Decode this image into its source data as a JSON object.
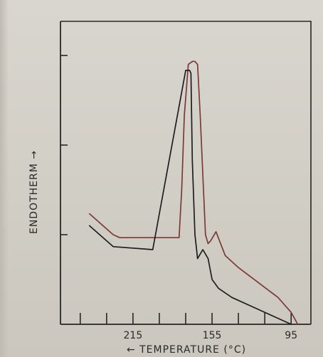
{
  "chart_data": {
    "type": "line",
    "title": "",
    "xlabel": "TEMPERATURE (°C)",
    "xlabel_prefix": "←",
    "ylabel": "ENDOTHERM",
    "ylabel_suffix": "→",
    "x_direction": "decreasing",
    "xlim": [
      270,
      80
    ],
    "ylim": [
      0,
      100
    ],
    "x_ticks": [
      255,
      235,
      215,
      195,
      175,
      155,
      135,
      115,
      95
    ],
    "x_tick_labels": [
      {
        "value": 215,
        "label": "215"
      },
      {
        "value": 155,
        "label": "155"
      },
      {
        "value": 95,
        "label": "95"
      }
    ],
    "y_ticks": [
      30,
      60,
      90
    ],
    "series": [
      {
        "x": [
          248,
          230,
          225,
          180,
          178,
          176,
          173,
          170,
          168,
          166,
          164,
          160,
          158,
          156,
          152,
          145,
          135,
          120,
          105,
          95,
          90
        ],
        "y": [
          37,
          30,
          29,
          29,
          45,
          70,
          87,
          88,
          88,
          87,
          70,
          30,
          27,
          28,
          31,
          23,
          19,
          14,
          9,
          4,
          0
        ],
        "color": "#7a3a35"
      },
      {
        "x": [
          248,
          230,
          200,
          175,
          172,
          171,
          170,
          168,
          166,
          162,
          158,
          155,
          150,
          140,
          120,
          105,
          95
        ],
        "y": [
          33,
          26,
          25,
          85,
          85,
          84,
          55,
          30,
          22,
          25,
          22,
          15,
          12,
          9,
          5,
          2,
          0
        ],
        "color": "#1e1e1e"
      }
    ]
  }
}
